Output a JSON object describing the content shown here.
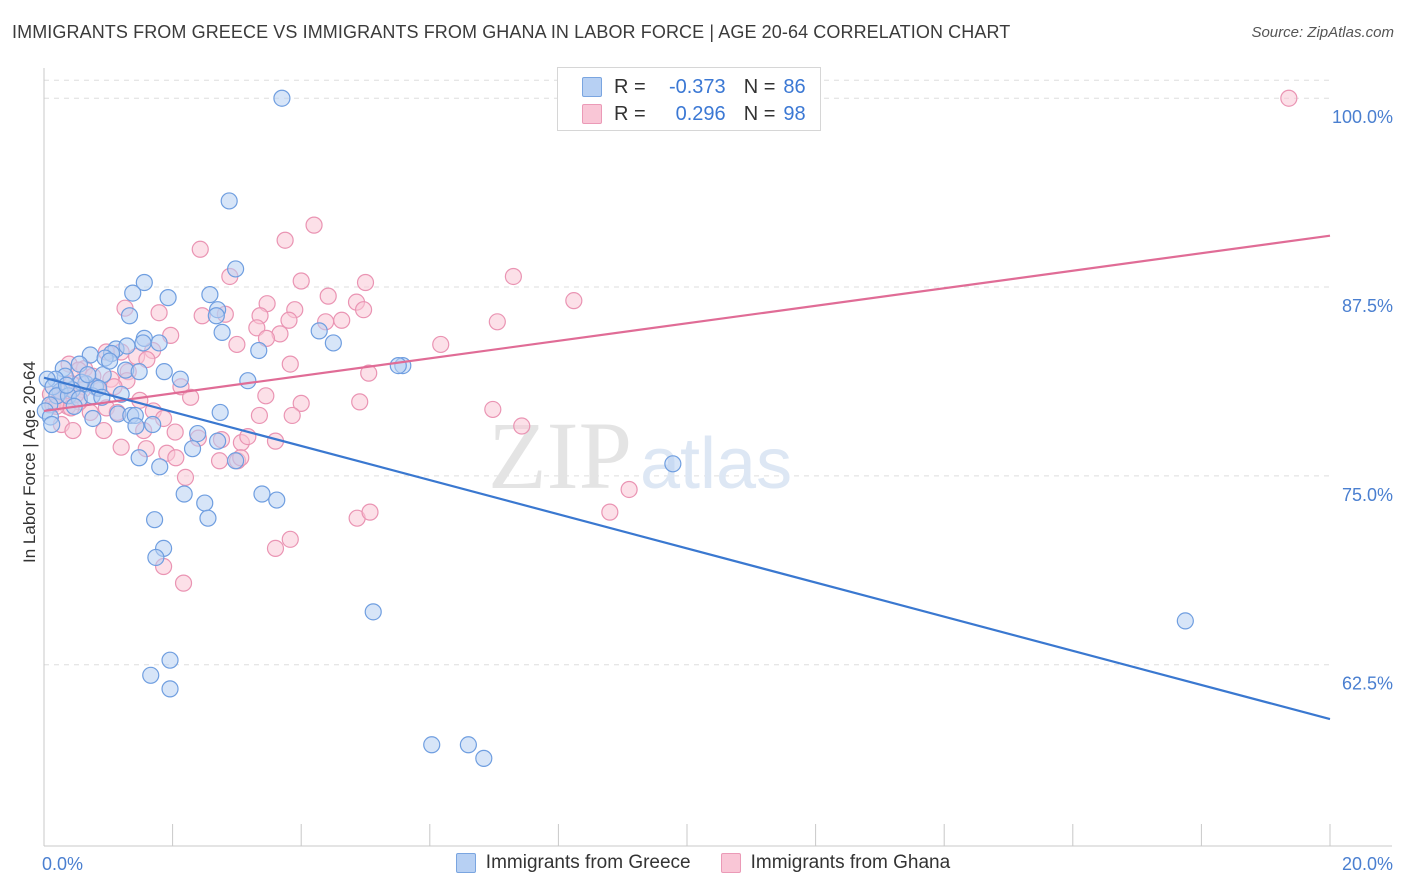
{
  "title": "IMMIGRANTS FROM GREECE VS IMMIGRANTS FROM GHANA IN LABOR FORCE | AGE 20-64 CORRELATION CHART",
  "source": "Source: ZipAtlas.com",
  "watermark": {
    "zip": "ZIP",
    "atlas": "atlas"
  },
  "legend": {
    "greece": {
      "r_label": "R =",
      "r_value": "-0.373",
      "n_label": "N =",
      "n_value": "86"
    },
    "ghana": {
      "r_label": "R =",
      "r_value": "0.296",
      "n_label": "N =",
      "n_value": "98"
    }
  },
  "bottom_legend": {
    "greece": "Immigrants from Greece",
    "ghana": "Immigrants from Ghana"
  },
  "colors": {
    "greece_fill": "#b7d0f3",
    "greece_stroke": "#6f9ee0",
    "greece_line": "#3a78d0",
    "ghana_fill": "#f9c6d6",
    "ghana_stroke": "#ea94b3",
    "ghana_line": "#e06c96",
    "tick_label": "#4a7fd0",
    "grid": "#dddddd"
  },
  "chart_data": {
    "type": "scatter",
    "title": "IMMIGRANTS FROM GREECE VS IMMIGRANTS FROM GHANA IN LABOR FORCE | AGE 20-64 CORRELATION CHART",
    "xlabel": "",
    "ylabel": "In Labor Force | Age 20-64",
    "xlim": [
      0,
      20
    ],
    "ylim": [
      50.5,
      102
    ],
    "x_tick_labels": [
      {
        "value": 0,
        "label": "0.0%"
      },
      {
        "value": 20,
        "label": "20.0%"
      }
    ],
    "y_tick_labels": [
      {
        "value": 100,
        "label": "100.0%"
      },
      {
        "value": 87.5,
        "label": "87.5%"
      },
      {
        "value": 75,
        "label": "75.0%"
      },
      {
        "value": 62.5,
        "label": "62.5%"
      }
    ],
    "series": [
      {
        "name": "Immigrants from Greece",
        "r": -0.373,
        "n": 86,
        "trend": {
          "x": [
            0,
            20
          ],
          "y": [
            81.5,
            58.9
          ]
        },
        "points": [
          [
            3.7,
            100
          ],
          [
            2.88,
            93.2
          ],
          [
            2.98,
            88.7
          ],
          [
            1.56,
            87.8
          ],
          [
            1.38,
            87.1
          ],
          [
            1.93,
            86.8
          ],
          [
            2.58,
            87.0
          ],
          [
            1.33,
            85.6
          ],
          [
            2.7,
            86.0
          ],
          [
            2.68,
            85.6
          ],
          [
            1.56,
            84.1
          ],
          [
            1.79,
            83.8
          ],
          [
            1.54,
            83.8
          ],
          [
            2.77,
            84.5
          ],
          [
            4.28,
            84.6
          ],
          [
            4.5,
            83.8
          ],
          [
            3.34,
            83.3
          ],
          [
            1.12,
            83.4
          ],
          [
            1.05,
            83.1
          ],
          [
            1.29,
            83.6
          ],
          [
            0.72,
            83.0
          ],
          [
            0.95,
            82.8
          ],
          [
            0.55,
            82.4
          ],
          [
            5.58,
            82.3
          ],
          [
            5.51,
            82.3
          ],
          [
            1.27,
            82.0
          ],
          [
            0.92,
            81.7
          ],
          [
            1.87,
            81.9
          ],
          [
            0.3,
            82.1
          ],
          [
            0.33,
            81.6
          ],
          [
            0.18,
            81.4
          ],
          [
            0.05,
            81.4
          ],
          [
            0.65,
            81.1
          ],
          [
            0.8,
            80.9
          ],
          [
            0.58,
            81.2
          ],
          [
            0.44,
            80.7
          ],
          [
            0.25,
            80.6
          ],
          [
            0.14,
            80.9
          ],
          [
            0.2,
            80.3
          ],
          [
            0.38,
            80.3
          ],
          [
            0.55,
            80.1
          ],
          [
            0.75,
            80.3
          ],
          [
            1.2,
            80.4
          ],
          [
            0.09,
            79.7
          ],
          [
            0.02,
            79.3
          ],
          [
            0.1,
            78.9
          ],
          [
            0.12,
            78.4
          ],
          [
            0.76,
            78.8
          ],
          [
            1.15,
            79.1
          ],
          [
            1.35,
            79.0
          ],
          [
            1.42,
            79.0
          ],
          [
            2.12,
            81.4
          ],
          [
            3.17,
            81.3
          ],
          [
            1.43,
            78.3
          ],
          [
            1.69,
            78.4
          ],
          [
            2.39,
            77.8
          ],
          [
            2.7,
            77.3
          ],
          [
            2.31,
            76.8
          ],
          [
            2.98,
            76.0
          ],
          [
            1.48,
            76.2
          ],
          [
            1.8,
            75.6
          ],
          [
            9.78,
            75.8
          ],
          [
            2.18,
            73.8
          ],
          [
            3.39,
            73.8
          ],
          [
            3.62,
            73.4
          ],
          [
            2.5,
            73.2
          ],
          [
            2.55,
            72.2
          ],
          [
            1.72,
            72.1
          ],
          [
            1.86,
            70.2
          ],
          [
            1.74,
            69.6
          ],
          [
            5.12,
            66.0
          ],
          [
            17.75,
            65.4
          ],
          [
            1.96,
            62.8
          ],
          [
            1.66,
            61.8
          ],
          [
            1.96,
            60.9
          ],
          [
            6.03,
            57.2
          ],
          [
            6.6,
            57.2
          ],
          [
            6.84,
            56.3
          ],
          [
            2.74,
            79.2
          ],
          [
            0.85,
            80.8
          ],
          [
            0.47,
            79.6
          ],
          [
            0.68,
            81.7
          ],
          [
            1.02,
            82.6
          ],
          [
            1.48,
            81.9
          ],
          [
            0.35,
            81.0
          ],
          [
            0.9,
            80.2
          ]
        ]
      },
      {
        "name": "Immigrants from Ghana",
        "r": 0.296,
        "n": 98,
        "trend": {
          "x": [
            0,
            20
          ],
          "y": [
            79.3,
            90.9
          ]
        },
        "points": [
          [
            19.36,
            100
          ],
          [
            4.2,
            91.6
          ],
          [
            3.75,
            90.6
          ],
          [
            2.43,
            90.0
          ],
          [
            2.89,
            88.2
          ],
          [
            4.0,
            87.9
          ],
          [
            5.0,
            87.8
          ],
          [
            7.3,
            88.2
          ],
          [
            8.24,
            86.6
          ],
          [
            4.42,
            86.9
          ],
          [
            4.86,
            86.5
          ],
          [
            3.47,
            86.4
          ],
          [
            3.9,
            86.0
          ],
          [
            4.97,
            86.0
          ],
          [
            1.26,
            86.1
          ],
          [
            1.79,
            85.8
          ],
          [
            2.46,
            85.6
          ],
          [
            2.82,
            85.7
          ],
          [
            3.36,
            85.6
          ],
          [
            3.81,
            85.3
          ],
          [
            4.38,
            85.2
          ],
          [
            4.63,
            85.3
          ],
          [
            7.05,
            85.2
          ],
          [
            3.31,
            84.8
          ],
          [
            3.67,
            84.4
          ],
          [
            1.97,
            84.3
          ],
          [
            3.46,
            84.1
          ],
          [
            3.0,
            83.7
          ],
          [
            1.69,
            83.3
          ],
          [
            1.2,
            83.2
          ],
          [
            0.97,
            83.2
          ],
          [
            1.44,
            82.9
          ],
          [
            1.6,
            82.7
          ],
          [
            3.83,
            82.4
          ],
          [
            6.17,
            83.7
          ],
          [
            5.05,
            81.8
          ],
          [
            1.31,
            81.9
          ],
          [
            0.63,
            82.1
          ],
          [
            0.39,
            82.4
          ],
          [
            0.54,
            82.0
          ],
          [
            0.76,
            81.6
          ],
          [
            0.43,
            81.1
          ],
          [
            1.04,
            81.4
          ],
          [
            1.29,
            81.3
          ],
          [
            2.13,
            80.9
          ],
          [
            0.6,
            80.7
          ],
          [
            0.28,
            80.7
          ],
          [
            0.1,
            80.4
          ],
          [
            0.3,
            80.2
          ],
          [
            0.23,
            80.0
          ],
          [
            1.49,
            80.0
          ],
          [
            2.28,
            80.2
          ],
          [
            3.45,
            80.3
          ],
          [
            4.0,
            79.8
          ],
          [
            4.91,
            79.9
          ],
          [
            0.14,
            79.7
          ],
          [
            0.37,
            79.6
          ],
          [
            0.72,
            79.2
          ],
          [
            0.97,
            79.5
          ],
          [
            1.14,
            79.2
          ],
          [
            1.7,
            79.3
          ],
          [
            1.86,
            78.8
          ],
          [
            3.35,
            79.0
          ],
          [
            3.86,
            79.0
          ],
          [
            0.27,
            78.4
          ],
          [
            0.45,
            78.0
          ],
          [
            0.93,
            78.0
          ],
          [
            1.55,
            78.0
          ],
          [
            2.04,
            77.9
          ],
          [
            2.4,
            77.5
          ],
          [
            2.76,
            77.4
          ],
          [
            3.07,
            77.2
          ],
          [
            3.17,
            77.6
          ],
          [
            3.6,
            77.3
          ],
          [
            1.2,
            76.9
          ],
          [
            1.59,
            76.8
          ],
          [
            1.91,
            76.5
          ],
          [
            2.05,
            76.2
          ],
          [
            2.73,
            76.0
          ],
          [
            3.01,
            76.0
          ],
          [
            3.06,
            76.2
          ],
          [
            2.2,
            74.9
          ],
          [
            6.98,
            79.4
          ],
          [
            7.43,
            78.3
          ],
          [
            9.1,
            74.1
          ],
          [
            8.8,
            72.6
          ],
          [
            4.87,
            72.2
          ],
          [
            5.07,
            72.6
          ],
          [
            3.83,
            70.8
          ],
          [
            3.6,
            70.2
          ],
          [
            1.86,
            69.0
          ],
          [
            2.17,
            67.9
          ],
          [
            0.55,
            79.9
          ],
          [
            0.19,
            79.6
          ],
          [
            0.42,
            79.5
          ],
          [
            0.5,
            80.4
          ],
          [
            0.83,
            80.8
          ],
          [
            1.09,
            80.9
          ]
        ]
      }
    ]
  }
}
